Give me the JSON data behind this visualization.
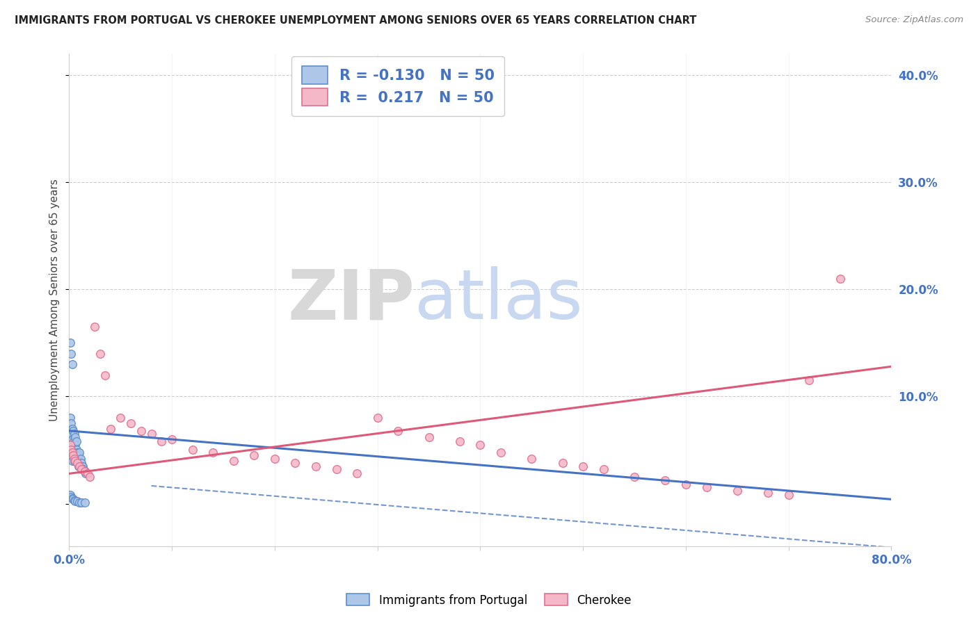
{
  "title": "IMMIGRANTS FROM PORTUGAL VS CHEROKEE UNEMPLOYMENT AMONG SENIORS OVER 65 YEARS CORRELATION CHART",
  "source": "Source: ZipAtlas.com",
  "ylabel": "Unemployment Among Seniors over 65 years",
  "xlim": [
    0.0,
    0.8
  ],
  "ylim": [
    -0.04,
    0.42
  ],
  "grid_color": "#cccccc",
  "background_color": "#ffffff",
  "legend_R_portugal": "-0.130",
  "legend_N_portugal": "50",
  "legend_R_cherokee": "0.217",
  "legend_N_cherokee": "50",
  "portugal_face_color": "#aec6e8",
  "portugal_edge_color": "#5b8fcc",
  "cherokee_face_color": "#f5b8c8",
  "cherokee_edge_color": "#e07090",
  "portugal_line_color": "#4472c4",
  "cherokee_line_color": "#e05878",
  "tick_color": "#4472c4",
  "title_color": "#222222",
  "source_color": "#888888",
  "ylabel_color": "#444444",
  "watermark_zip_color": "#d8d8d8",
  "watermark_atlas_color": "#c8d8f0",
  "portugal_x": [
    0.001,
    0.001,
    0.001,
    0.002,
    0.002,
    0.002,
    0.003,
    0.003,
    0.003,
    0.004,
    0.004,
    0.005,
    0.005,
    0.005,
    0.006,
    0.006,
    0.007,
    0.007,
    0.008,
    0.008,
    0.009,
    0.009,
    0.01,
    0.01,
    0.011,
    0.012,
    0.013,
    0.014,
    0.015,
    0.016,
    0.001,
    0.002,
    0.003,
    0.004,
    0.005,
    0.006,
    0.007,
    0.001,
    0.002,
    0.003,
    0.001,
    0.002,
    0.003,
    0.004,
    0.005,
    0.006,
    0.008,
    0.01,
    0.012,
    0.015
  ],
  "portugal_y": [
    0.07,
    0.06,
    0.05,
    0.065,
    0.055,
    0.045,
    0.06,
    0.05,
    0.04,
    0.055,
    0.045,
    0.06,
    0.05,
    0.04,
    0.055,
    0.045,
    0.05,
    0.04,
    0.048,
    0.038,
    0.045,
    0.035,
    0.048,
    0.038,
    0.042,
    0.038,
    0.035,
    0.032,
    0.03,
    0.028,
    0.08,
    0.075,
    0.07,
    0.068,
    0.065,
    0.062,
    0.058,
    0.15,
    0.14,
    0.13,
    0.008,
    0.006,
    0.005,
    0.004,
    0.003,
    0.002,
    0.002,
    0.001,
    0.001,
    0.001
  ],
  "cherokee_x": [
    0.001,
    0.002,
    0.003,
    0.004,
    0.005,
    0.006,
    0.008,
    0.01,
    0.012,
    0.015,
    0.018,
    0.02,
    0.025,
    0.03,
    0.035,
    0.04,
    0.05,
    0.06,
    0.07,
    0.08,
    0.09,
    0.1,
    0.12,
    0.14,
    0.16,
    0.18,
    0.2,
    0.22,
    0.24,
    0.26,
    0.28,
    0.3,
    0.32,
    0.35,
    0.38,
    0.4,
    0.42,
    0.45,
    0.48,
    0.5,
    0.52,
    0.55,
    0.58,
    0.6,
    0.62,
    0.65,
    0.68,
    0.7,
    0.72,
    0.75
  ],
  "cherokee_y": [
    0.055,
    0.05,
    0.048,
    0.045,
    0.042,
    0.04,
    0.038,
    0.035,
    0.032,
    0.03,
    0.028,
    0.025,
    0.165,
    0.14,
    0.12,
    0.07,
    0.08,
    0.075,
    0.068,
    0.065,
    0.058,
    0.06,
    0.05,
    0.048,
    0.04,
    0.045,
    0.042,
    0.038,
    0.035,
    0.032,
    0.028,
    0.08,
    0.068,
    0.062,
    0.058,
    0.055,
    0.048,
    0.042,
    0.038,
    0.035,
    0.032,
    0.025,
    0.022,
    0.018,
    0.015,
    0.012,
    0.01,
    0.008,
    0.115,
    0.21
  ]
}
